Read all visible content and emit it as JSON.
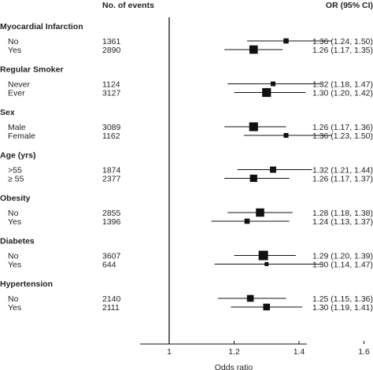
{
  "chart_data": {
    "type": "forest",
    "headers": {
      "events": "No. of events",
      "or": "OR (95% CI)"
    },
    "xlabel": "Odds ratio",
    "xlim": [
      0.94,
      1.67
    ],
    "xticks": [
      "1",
      "1.2",
      "1.4",
      "1.6"
    ],
    "reference_line": 1,
    "groups": [
      {
        "title": "Myocardial Infarction",
        "rows": [
          {
            "label": "No",
            "events": "1361",
            "or": 1.36,
            "lo": 1.24,
            "hi": 1.5,
            "ci_text": "1.36 (1.24, 1.50)"
          },
          {
            "label": "Yes",
            "events": "2890",
            "or": 1.26,
            "lo": 1.17,
            "hi": 1.35,
            "ci_text": "1.26 (1.17, 1.35)"
          }
        ]
      },
      {
        "title": "Regular Smoker",
        "rows": [
          {
            "label": "Never",
            "events": "1124",
            "or": 1.32,
            "lo": 1.18,
            "hi": 1.47,
            "ci_text": "1.32 (1.18, 1.47)"
          },
          {
            "label": "Ever",
            "events": "3127",
            "or": 1.3,
            "lo": 1.2,
            "hi": 1.42,
            "ci_text": "1.30 (1.20, 1.42)"
          }
        ]
      },
      {
        "title": "Sex",
        "rows": [
          {
            "label": "Male",
            "events": "3089",
            "or": 1.26,
            "lo": 1.17,
            "hi": 1.36,
            "ci_text": "1.26 (1.17, 1.36)"
          },
          {
            "label": "Female",
            "events": "1162",
            "or": 1.36,
            "lo": 1.23,
            "hi": 1.5,
            "ci_text": "1.36 (1.23, 1.50)"
          }
        ]
      },
      {
        "title": "Age (yrs)",
        "rows": [
          {
            "label": ">55",
            "events": "1874",
            "or": 1.32,
            "lo": 1.21,
            "hi": 1.44,
            "ci_text": "1.32 (1.21, 1.44)"
          },
          {
            "label": "≥ 55",
            "events": "2377",
            "or": 1.26,
            "lo": 1.17,
            "hi": 1.37,
            "ci_text": "1.26 (1.17, 1.37)"
          }
        ]
      },
      {
        "title": "Obesity",
        "rows": [
          {
            "label": "No",
            "events": "2855",
            "or": 1.28,
            "lo": 1.18,
            "hi": 1.38,
            "ci_text": "1.28 (1.18, 1.38)"
          },
          {
            "label": "Yes",
            "events": "1396",
            "or": 1.24,
            "lo": 1.13,
            "hi": 1.37,
            "ci_text": "1.24 (1.13, 1.37)"
          }
        ]
      },
      {
        "title": "Diabetes",
        "rows": [
          {
            "label": "No",
            "events": "3607",
            "or": 1.29,
            "lo": 1.2,
            "hi": 1.39,
            "ci_text": "1.29 (1.20, 1.39)"
          },
          {
            "label": "Yes",
            "events": "644",
            "or": 1.3,
            "lo": 1.14,
            "hi": 1.47,
            "ci_text": "1.30 (1.14, 1.47)"
          }
        ]
      },
      {
        "title": "Hypertension",
        "rows": [
          {
            "label": "No",
            "events": "2140",
            "or": 1.25,
            "lo": 1.15,
            "hi": 1.36,
            "ci_text": "1.25 (1.15, 1.36)"
          },
          {
            "label": "Yes",
            "events": "2111",
            "or": 1.3,
            "lo": 1.19,
            "hi": 1.41,
            "ci_text": "1.30 (1.19, 1.41)"
          }
        ]
      }
    ]
  }
}
